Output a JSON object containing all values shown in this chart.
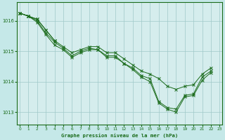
{
  "title": "Graphe pression niveau de la mer (hPa)",
  "bg_color": "#c5e8e8",
  "plot_bg_color": "#d5eded",
  "grid_color": "#9fc8c8",
  "line_color": "#1a6b1a",
  "x_ticks": [
    0,
    1,
    2,
    3,
    4,
    5,
    6,
    7,
    8,
    9,
    10,
    11,
    12,
    13,
    14,
    15,
    16,
    17,
    18,
    19,
    20,
    21,
    22,
    23
  ],
  "y_ticks": [
    1013,
    1014,
    1015,
    1016
  ],
  "ylim": [
    1012.6,
    1016.6
  ],
  "xlim": [
    -0.3,
    23.3
  ],
  "series": [
    [
      1016.25,
      1016.15,
      1015.95,
      1015.55,
      1015.2,
      1015.05,
      1014.8,
      1014.95,
      1015.05,
      1015.05,
      1014.8,
      1014.8,
      1014.6,
      1014.4,
      1014.15,
      1014.0,
      1013.3,
      1013.1,
      1013.0,
      1013.5,
      1013.55,
      1014.05,
      1014.3,
      null
    ],
    [
      1016.25,
      1016.15,
      1016.0,
      1015.6,
      1015.3,
      1015.1,
      1014.85,
      1015.0,
      1015.1,
      1015.05,
      1014.85,
      1014.85,
      1014.6,
      1014.45,
      1014.2,
      1014.1,
      1013.35,
      1013.15,
      1013.1,
      1013.55,
      1013.6,
      1014.15,
      1014.35,
      null
    ],
    [
      1016.25,
      1016.15,
      1016.05,
      1015.7,
      1015.35,
      null,
      null,
      null,
      null,
      null,
      null,
      null,
      null,
      null,
      null,
      null,
      null,
      null,
      null,
      null,
      null,
      null,
      null,
      null
    ],
    [
      1016.25,
      1016.15,
      1016.05,
      1015.7,
      1015.35,
      1015.15,
      1014.95,
      1015.05,
      1015.15,
      1015.15,
      1014.95,
      1014.95,
      1014.75,
      1014.55,
      1014.35,
      1014.25,
      1014.1,
      1013.85,
      1013.75,
      1013.85,
      1013.9,
      1014.25,
      1014.45,
      null
    ]
  ]
}
